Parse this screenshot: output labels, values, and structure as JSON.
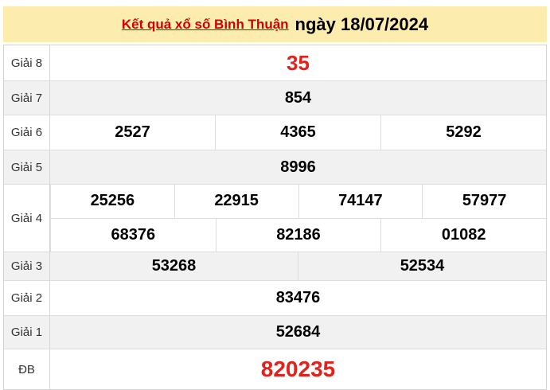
{
  "header": {
    "title_link": "Kết quả xổ số Bình Thuận",
    "title_date": "ngày 18/07/2024"
  },
  "colors": {
    "header_background": "#fcecae",
    "alt_row_background": "#f1f1f1",
    "border": "#dddddd",
    "title_link_red": "#d40000",
    "highlight_number_red": "#e2211c",
    "number_black": "#000000"
  },
  "table": {
    "rows": [
      {
        "label": "Giải 8",
        "cells": [
          [
            "35"
          ]
        ]
      },
      {
        "label": "Giải 7",
        "cells": [
          [
            "854"
          ]
        ]
      },
      {
        "label": "Giải 6",
        "cells": [
          [
            "2527",
            "4365",
            "5292"
          ]
        ]
      },
      {
        "label": "Giải 5",
        "cells": [
          [
            "8996"
          ]
        ]
      },
      {
        "label": "Giải 4",
        "cells": [
          [
            "25256",
            "22915",
            "74147",
            "57977"
          ],
          [
            "68376",
            "82186",
            "01082"
          ]
        ]
      },
      {
        "label": "Giải 3",
        "cells": [
          [
            "53268",
            "52534"
          ]
        ]
      },
      {
        "label": "Giải 2",
        "cells": [
          [
            "83476"
          ]
        ]
      },
      {
        "label": "Giải 1",
        "cells": [
          [
            "52684"
          ]
        ]
      },
      {
        "label": "ĐB",
        "cells": [
          [
            "820235"
          ]
        ]
      }
    ]
  }
}
